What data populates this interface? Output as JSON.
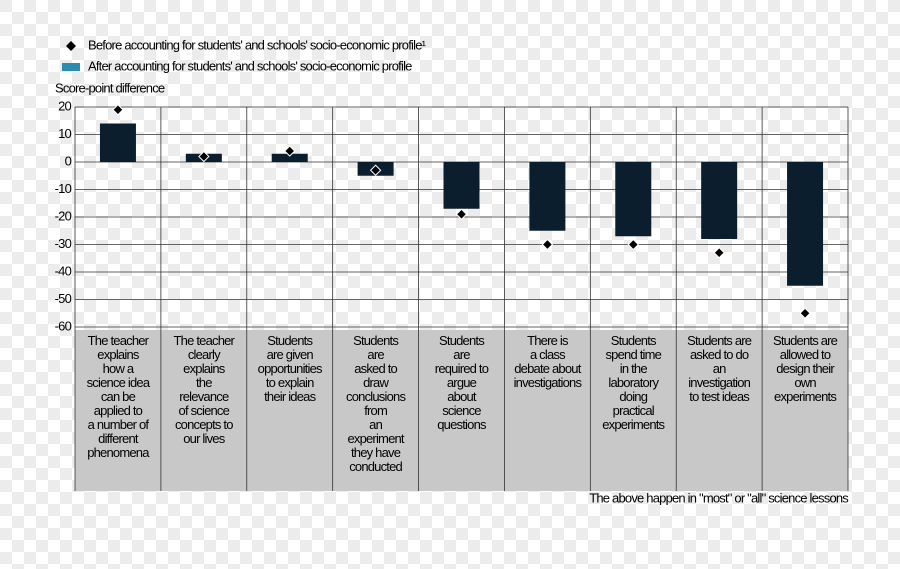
{
  "chart_data": {
    "type": "bar",
    "ylabel": "Score-point difference",
    "note": "The above happen in \"most\" or \"all\" science lessons",
    "categories": [
      "The teacher\nexplains\nhow a\nscience idea\ncan be\napplied to\na number of\ndifferent\nphenomena",
      "The teacher\nclearly\nexplains\nthe\nrelevance\nof science\nconcepts to\nour lives",
      "Students\nare given\nopportunities\nto explain\ntheir ideas",
      "Students\nare\nasked to\ndraw\nconclusions\nfrom\nan\nexperiment\nthey have\nconducted",
      "Students\nare\nrequired to\nargue\nabout\nscience\nquestions",
      "There is\na class\ndebate about\ninvestigations",
      "Students\nspend time\nin the\nlaboratory\ndoing\npractical\nexperiments",
      "Students are\nasked to do\nan\ninvestigation\nto test ideas",
      "Students are\nallowed to\ndesign their\nown\nexperiments"
    ],
    "series": [
      {
        "name": "Before accounting for students' and schools' socio-economic profile¹",
        "color": "#000000",
        "marker": "diamond",
        "values": [
          19,
          2,
          4,
          -3,
          -19,
          -30,
          -30,
          -33,
          -55
        ]
      },
      {
        "name": "After accounting for students' and schools' socio-economic profile",
        "color": "#0b1e2d",
        "marker": "bar",
        "values": [
          14,
          3,
          3,
          -5,
          -17,
          -25,
          -27,
          -28,
          -45
        ]
      }
    ],
    "ylim": [
      -60,
      20
    ],
    "yticks": [
      -60,
      -50,
      -40,
      -30,
      -20,
      -10,
      0,
      10,
      20
    ],
    "grid": true
  }
}
